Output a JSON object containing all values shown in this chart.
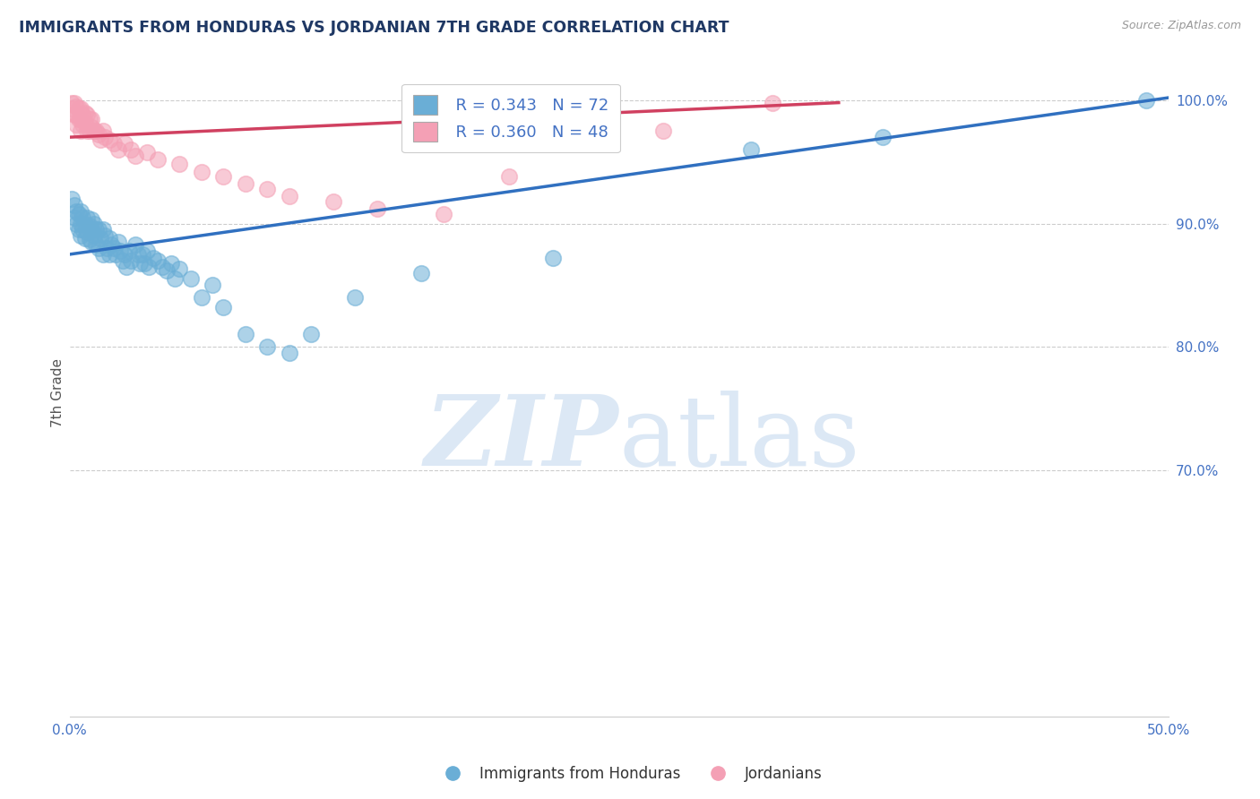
{
  "title": "IMMIGRANTS FROM HONDURAS VS JORDANIAN 7TH GRADE CORRELATION CHART",
  "source": "Source: ZipAtlas.com",
  "ylabel": "7th Grade",
  "xmin": 0.0,
  "xmax": 0.5,
  "ymin": 0.5,
  "ymax": 1.025,
  "yticks": [
    0.7,
    0.8,
    0.9,
    1.0
  ],
  "ytick_labels": [
    "70.0%",
    "80.0%",
    "90.0%",
    "100.0%"
  ],
  "legend_r1": "R = 0.343",
  "legend_n1": "N = 72",
  "legend_r2": "R = 0.360",
  "legend_n2": "N = 48",
  "blue_color": "#6aaed6",
  "pink_color": "#f4a0b5",
  "trend_blue": "#3070c0",
  "trend_pink": "#d04060",
  "title_color": "#1f3864",
  "axis_label_color": "#4472c4",
  "watermark_color": "#dce8f5",
  "blue_trend_x": [
    0.0,
    0.5
  ],
  "blue_trend_y": [
    0.875,
    1.002
  ],
  "pink_trend_x": [
    0.0,
    0.35
  ],
  "pink_trend_y": [
    0.97,
    0.998
  ],
  "blue_scatter_x": [
    0.001,
    0.002,
    0.002,
    0.003,
    0.003,
    0.004,
    0.004,
    0.005,
    0.005,
    0.005,
    0.006,
    0.006,
    0.007,
    0.007,
    0.008,
    0.008,
    0.009,
    0.009,
    0.01,
    0.01,
    0.01,
    0.011,
    0.011,
    0.012,
    0.012,
    0.013,
    0.013,
    0.014,
    0.015,
    0.015,
    0.016,
    0.017,
    0.018,
    0.018,
    0.019,
    0.02,
    0.021,
    0.022,
    0.023,
    0.024,
    0.025,
    0.026,
    0.027,
    0.028,
    0.03,
    0.031,
    0.032,
    0.033,
    0.034,
    0.035,
    0.036,
    0.038,
    0.04,
    0.042,
    0.044,
    0.046,
    0.048,
    0.05,
    0.055,
    0.06,
    0.065,
    0.07,
    0.08,
    0.09,
    0.1,
    0.11,
    0.13,
    0.16,
    0.22,
    0.31,
    0.37,
    0.49
  ],
  "blue_scatter_y": [
    0.92,
    0.915,
    0.905,
    0.91,
    0.9,
    0.908,
    0.895,
    0.91,
    0.9,
    0.89,
    0.905,
    0.895,
    0.9,
    0.888,
    0.905,
    0.893,
    0.898,
    0.887,
    0.903,
    0.895,
    0.885,
    0.9,
    0.89,
    0.895,
    0.883,
    0.895,
    0.88,
    0.888,
    0.895,
    0.875,
    0.89,
    0.88,
    0.888,
    0.875,
    0.883,
    0.88,
    0.875,
    0.885,
    0.878,
    0.87,
    0.875,
    0.865,
    0.878,
    0.87,
    0.883,
    0.875,
    0.868,
    0.875,
    0.868,
    0.878,
    0.865,
    0.872,
    0.87,
    0.865,
    0.862,
    0.868,
    0.855,
    0.863,
    0.855,
    0.84,
    0.85,
    0.832,
    0.81,
    0.8,
    0.795,
    0.81,
    0.84,
    0.86,
    0.872,
    0.96,
    0.97,
    1.0
  ],
  "pink_scatter_x": [
    0.001,
    0.001,
    0.002,
    0.002,
    0.003,
    0.003,
    0.003,
    0.004,
    0.004,
    0.005,
    0.005,
    0.005,
    0.006,
    0.006,
    0.007,
    0.007,
    0.008,
    0.008,
    0.009,
    0.009,
    0.01,
    0.01,
    0.011,
    0.012,
    0.013,
    0.014,
    0.015,
    0.016,
    0.018,
    0.02,
    0.022,
    0.025,
    0.028,
    0.03,
    0.035,
    0.04,
    0.05,
    0.06,
    0.07,
    0.08,
    0.09,
    0.1,
    0.12,
    0.14,
    0.17,
    0.2,
    0.27,
    0.32
  ],
  "pink_scatter_y": [
    0.998,
    0.993,
    0.998,
    0.988,
    0.995,
    0.988,
    0.98,
    0.993,
    0.985,
    0.993,
    0.985,
    0.975,
    0.988,
    0.98,
    0.99,
    0.982,
    0.988,
    0.975,
    0.985,
    0.975,
    0.985,
    0.978,
    0.975,
    0.975,
    0.972,
    0.968,
    0.975,
    0.97,
    0.968,
    0.965,
    0.96,
    0.965,
    0.96,
    0.955,
    0.958,
    0.952,
    0.948,
    0.942,
    0.938,
    0.932,
    0.928,
    0.922,
    0.918,
    0.912,
    0.908,
    0.938,
    0.975,
    0.998
  ]
}
